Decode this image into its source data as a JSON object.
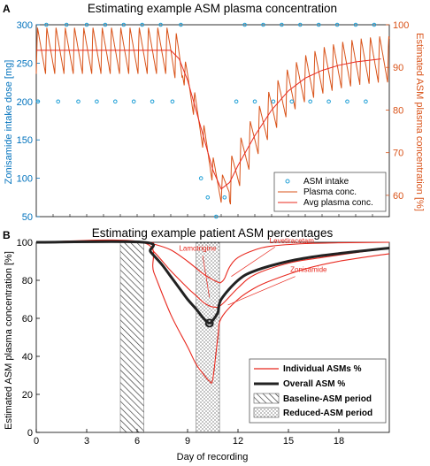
{
  "chart_data": [
    {
      "panel": "A",
      "type": "line",
      "title": "Estimating example ASM plasma concentration",
      "ylabel_left": "Zonisamide intake dose [mg]",
      "ylabel_right": "Estimated ASM plasma concentration [%]",
      "ylim_left": [
        50,
        300
      ],
      "ylim_right": [
        55,
        100
      ],
      "xlim": [
        0,
        21
      ],
      "yticks_left": [
        "300",
        "250",
        "200",
        "150",
        "100",
        "50"
      ],
      "yticks_right": [
        "100",
        "90",
        "80",
        "70",
        "60"
      ],
      "series": [
        {
          "name": "ASM intake",
          "type": "scatter",
          "x": [
            0.1,
            0.6,
            1.3,
            1.8,
            2.5,
            3.0,
            3.6,
            4.1,
            4.7,
            5.2,
            5.8,
            6.3,
            6.9,
            7.4,
            8.1,
            8.6,
            9.8,
            10.2,
            10.7,
            11.2,
            11.9,
            12.4,
            13.0,
            13.5,
            14.1,
            14.6,
            15.2,
            15.7,
            16.3,
            16.8,
            17.4,
            17.9,
            18.5,
            19.0,
            19.6,
            20.1
          ],
          "y": [
            200,
            300,
            200,
            300,
            200,
            300,
            200,
            300,
            200,
            300,
            200,
            300,
            200,
            300,
            200,
            300,
            100,
            75,
            50,
            75,
            200,
            300,
            200,
            300,
            200,
            300,
            200,
            300,
            200,
            300,
            200,
            300,
            200,
            300,
            200,
            300
          ]
        },
        {
          "name": "Plasma conc.",
          "type": "line"
        },
        {
          "name": "Avg plasma conc.",
          "type": "line",
          "x": [
            0,
            8,
            8.5,
            9,
            9.5,
            10,
            10.5,
            11,
            11.5,
            12,
            13,
            14,
            15,
            16,
            17,
            18,
            19,
            20.5
          ],
          "y": [
            94,
            94,
            92,
            87,
            80,
            73,
            66,
            61.5,
            63,
            67,
            74,
            80,
            84.5,
            87.5,
            89.3,
            90.5,
            91.3,
            92
          ]
        }
      ],
      "colors": {
        "intake": "#1f9fd6",
        "plasma": "#d95319",
        "avg": "#e8281e",
        "left_axis": "#0072bd",
        "right_axis": "#d95319"
      }
    },
    {
      "panel": "B",
      "type": "line",
      "title": "Estimating example patient ASM percentages",
      "xlabel": "Day of recording",
      "ylabel": "Estimated ASM plasma concentration [%]",
      "xlim": [
        0,
        21
      ],
      "ylim": [
        0,
        100
      ],
      "xticks": [
        "0",
        "3",
        "6",
        "9",
        "12",
        "15",
        "18"
      ],
      "yticks": [
        "100",
        "80",
        "60",
        "40",
        "20",
        "0"
      ],
      "shaded_periods": [
        {
          "name": "Baseline-ASM period",
          "x": [
            5,
            6.4
          ],
          "pattern": "hatched"
        },
        {
          "name": "Reduced-ASM period",
          "x": [
            9.5,
            10.9
          ],
          "pattern": "dotted"
        }
      ],
      "series": [
        {
          "name": "Individual ASMs %",
          "label": "Lamotrigine",
          "x": [
            0,
            6.3,
            7,
            8,
            9,
            9.5,
            10,
            10.5,
            11,
            12,
            13,
            15,
            17,
            21
          ],
          "y": [
            100,
            100,
            95,
            85,
            76,
            72,
            68,
            66,
            67,
            76,
            83,
            89,
            92,
            97
          ]
        },
        {
          "name": "Individual ASMs %",
          "label": "Levetiracetam",
          "x": [
            0,
            6.3,
            7,
            8,
            9,
            10,
            10.8,
            11,
            11.2,
            11.5,
            12,
            13,
            14,
            16,
            18,
            21
          ],
          "y": [
            100,
            100,
            99,
            96,
            90,
            83,
            79,
            79,
            81,
            87,
            92,
            96,
            98,
            99.3,
            99.7,
            100
          ]
        },
        {
          "name": "Individual ASMs %",
          "label": "Zonisamide",
          "x": [
            0,
            6.3,
            7,
            8,
            9,
            9.5,
            10,
            10.3,
            10.5,
            10.8,
            11,
            12,
            13,
            14,
            16,
            18,
            21
          ],
          "y": [
            100,
            100,
            84,
            62,
            45,
            36,
            30,
            27,
            28,
            50,
            60,
            70,
            76,
            80,
            86,
            90,
            94
          ]
        },
        {
          "name": "Overall ASM %",
          "x": [
            0,
            6.4,
            6.8,
            7.5,
            8,
            8.5,
            9,
            9.5,
            10,
            10.3,
            10.5,
            10.8,
            11,
            12,
            13,
            15,
            17,
            21
          ],
          "y": [
            100,
            100,
            95,
            88,
            82,
            76,
            70,
            65,
            59.5,
            57.5,
            59,
            63,
            70,
            80,
            85,
            90,
            93,
            97
          ]
        }
      ],
      "marker": {
        "x": 10.3,
        "y": 57.5
      },
      "drug_labels": [
        "Lamotrigine",
        "Levetiracetam",
        "Zonisamide"
      ]
    }
  ],
  "panel_labels": [
    "A",
    "B"
  ],
  "legend_a": [
    "ASM intake",
    "Plasma conc.",
    "Avg plasma conc."
  ],
  "legend_b": [
    "Individual ASMs %",
    "Overall ASM %",
    "Baseline-ASM period",
    "Reduced-ASM period"
  ]
}
